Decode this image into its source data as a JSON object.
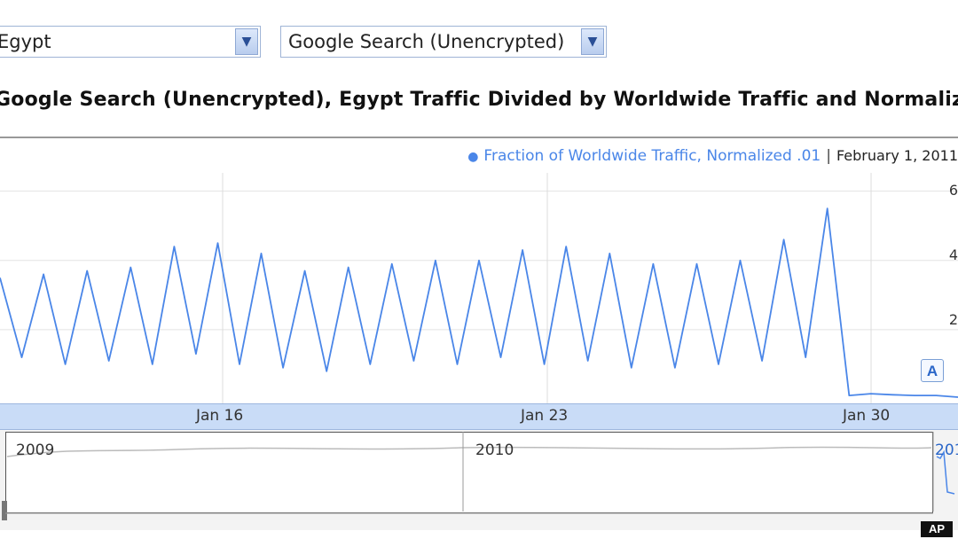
{
  "controls": {
    "country": "Egypt",
    "product": "Google Search (Unencrypted)"
  },
  "title": "Google Search (Unencrypted), Egypt Traffic Divided by Worldwide Traffic and Normalized",
  "legend": {
    "series_label": "Fraction of Worldwide Traffic, Normalized .01",
    "date": "February 1, 2011"
  },
  "annotation_marker": "A",
  "overview": {
    "years": [
      "2009",
      "2010",
      "201"
    ]
  },
  "watermark": "AP",
  "colors": {
    "series": "#4a86e8",
    "axis_bar": "#c9dcf7"
  },
  "chart_data": {
    "type": "line",
    "x_tick_labels": [
      "Jan 16",
      "Jan 23",
      "Jan 30"
    ],
    "y_tick_labels": [
      "6",
      "4",
      "2"
    ],
    "series": [
      {
        "name": "Fraction of Worldwide Traffic, Normalized .01",
        "x": [
          "Jan 10",
          "Jan 10.5",
          "Jan 11",
          "Jan 11.5",
          "Jan 12",
          "Jan 12.5",
          "Jan 13",
          "Jan 13.5",
          "Jan 14",
          "Jan 14.5",
          "Jan 15",
          "Jan 15.5",
          "Jan 16",
          "Jan 16.5",
          "Jan 17",
          "Jan 17.5",
          "Jan 18",
          "Jan 18.5",
          "Jan 19",
          "Jan 19.5",
          "Jan 20",
          "Jan 20.5",
          "Jan 21",
          "Jan 21.5",
          "Jan 22",
          "Jan 22.5",
          "Jan 23",
          "Jan 23.5",
          "Jan 24",
          "Jan 24.5",
          "Jan 25",
          "Jan 25.5",
          "Jan 26",
          "Jan 26.5",
          "Jan 27",
          "Jan 27.5",
          "Jan 28",
          "Jan 28.5",
          "Jan 29",
          "Jan 29.5",
          "Jan 30",
          "Jan 30.5",
          "Jan 31",
          "Jan 31.5",
          "Feb 1"
        ],
        "y": [
          3.5,
          1.2,
          3.6,
          1.0,
          3.7,
          1.1,
          3.8,
          1.0,
          4.4,
          1.3,
          4.5,
          1.0,
          4.2,
          0.9,
          3.7,
          0.8,
          3.8,
          1.0,
          3.9,
          1.1,
          4.0,
          1.0,
          4.0,
          1.2,
          4.3,
          1.0,
          4.4,
          1.1,
          4.2,
          0.9,
          3.9,
          0.9,
          3.9,
          1.0,
          4.0,
          1.1,
          4.6,
          1.2,
          5.5,
          0.1,
          0.15,
          0.12,
          0.1,
          0.1,
          0.05
        ]
      }
    ]
  }
}
